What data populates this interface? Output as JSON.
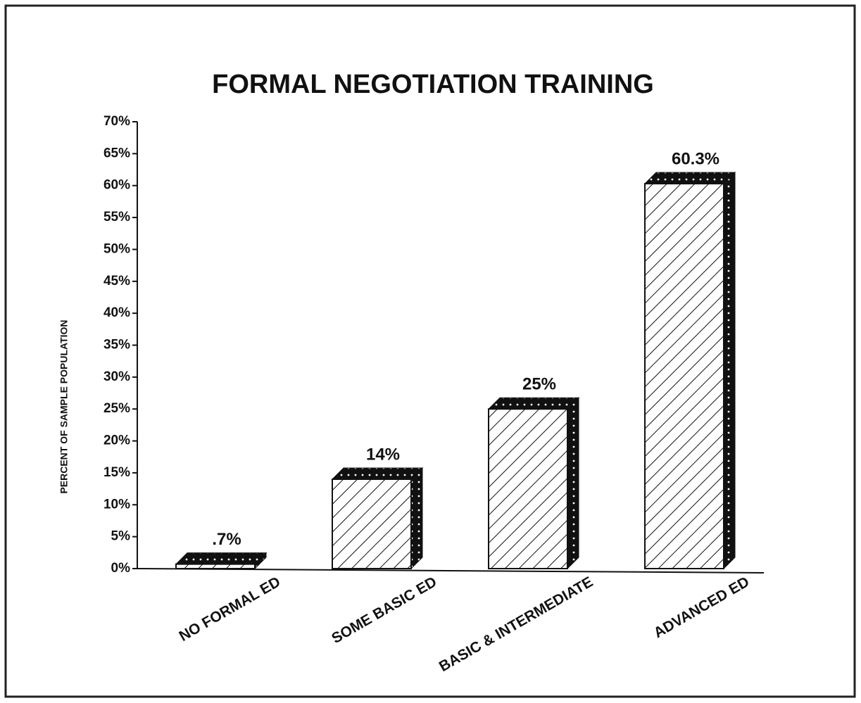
{
  "chart_data": {
    "type": "bar",
    "title": "FORMAL NEGOTIATION TRAINING",
    "y_label": "PERCENT OF SAMPLE POPULATION",
    "categories": [
      "NO FORMAL ED",
      "SOME BASIC ED",
      "BASIC & INTERMEDIATE",
      "ADVANCED ED"
    ],
    "values": [
      0.7,
      14,
      25,
      60.3
    ],
    "value_labels": [
      ".7%",
      "14%",
      "25%",
      "60.3%"
    ],
    "color": "#111111",
    "ylim": [
      0,
      70
    ],
    "yticks": [
      {
        "value": 0,
        "label": "0%"
      },
      {
        "value": 5,
        "label": "5%"
      },
      {
        "value": 10,
        "label": "10%"
      },
      {
        "value": 15,
        "label": "15%"
      },
      {
        "value": 20,
        "label": "20%"
      },
      {
        "value": 25,
        "label": "25%"
      },
      {
        "value": 30,
        "label": "30%"
      },
      {
        "value": 35,
        "label": "35%"
      },
      {
        "value": 40,
        "label": "40%"
      },
      {
        "value": 45,
        "label": "45%"
      },
      {
        "value": 50,
        "label": "50%"
      },
      {
        "value": 55,
        "label": "55%"
      },
      {
        "value": 60,
        "label": "60%"
      },
      {
        "value": 65,
        "label": "65%"
      },
      {
        "value": 70,
        "label": "70%"
      }
    ],
    "grid": false
  }
}
